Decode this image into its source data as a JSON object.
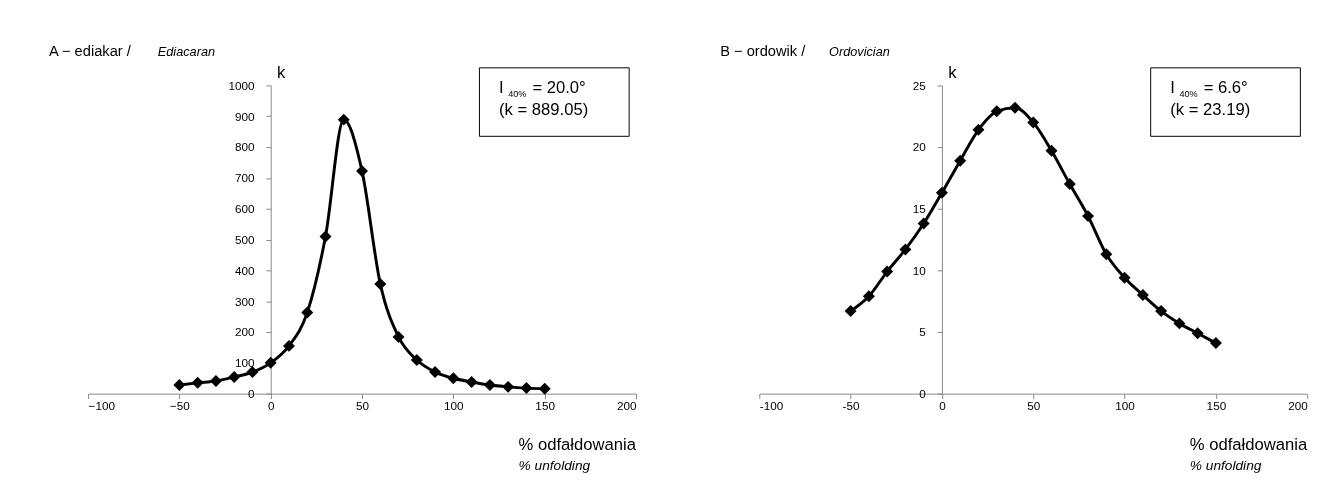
{
  "chart_data": [
    {
      "type": "line",
      "title": "A − ediakar /",
      "subtitle": "Ediacaran",
      "xlabel": "% odfałdowania",
      "ylabel": "k",
      "annotations": [
        "% unfolding",
        "I$_{40%}$ = 20.0°",
        "(k = 889.05)"
      ],
      "x": [
        -50,
        -40,
        -30,
        -20,
        -10,
        0,
        10,
        20,
        30,
        40,
        50,
        60,
        70,
        80,
        90,
        100,
        110,
        120,
        130,
        140,
        150
      ],
      "series": [
        {
          "color": "#000000",
          "values": [
            28,
            35,
            41,
            54,
            70,
            100,
            155,
            263,
            510,
            889.05,
            722,
            356,
            184,
            109,
            70,
            50,
            38,
            28,
            22,
            18,
            16
          ]
        }
      ],
      "xlim": [
        -100,
        200
      ],
      "ylim": [
        0,
        1000
      ],
      "xticks": [
        {
          "value": -100,
          "label": "−100"
        },
        {
          "value": -50,
          "label": "−50"
        },
        0,
        50,
        100,
        150,
        200
      ],
      "yticks": [
        0,
        100,
        200,
        300,
        400,
        500,
        600,
        700,
        800,
        900,
        1000
      ],
      "marker": "diamond",
      "line_style": "solid",
      "grid": false
    },
    {
      "type": "line",
      "title": "B − ordowik /",
      "subtitle": "Ordovician",
      "xlabel": "% odfałdowania",
      "ylabel": "k",
      "annotations": [
        "% unfolding",
        "I$_{40%}$ = 6.6°",
        "(k = 23.19)"
      ],
      "x": [
        -50,
        -40,
        -30,
        -20,
        -10,
        0,
        10,
        20,
        30,
        40,
        50,
        60,
        70,
        80,
        90,
        100,
        110,
        120,
        130,
        140,
        150
      ],
      "series": [
        {
          "color": "#000000",
          "values": [
            6.7,
            7.9,
            9.9,
            11.7,
            13.8,
            16.3,
            18.9,
            21.4,
            22.9,
            23.19,
            22.0,
            19.7,
            17.0,
            14.4,
            11.3,
            9.4,
            8.0,
            6.7,
            5.7,
            4.9,
            4.1
          ]
        }
      ],
      "xlim": [
        -100,
        200
      ],
      "ylim": [
        0,
        25
      ],
      "xticks": [
        -100,
        -50,
        0,
        50,
        100,
        150,
        200
      ],
      "yticks": [
        0,
        5,
        10,
        15,
        20,
        25
      ],
      "marker": "diamond",
      "line_style": "solid",
      "grid": false
    }
  ]
}
